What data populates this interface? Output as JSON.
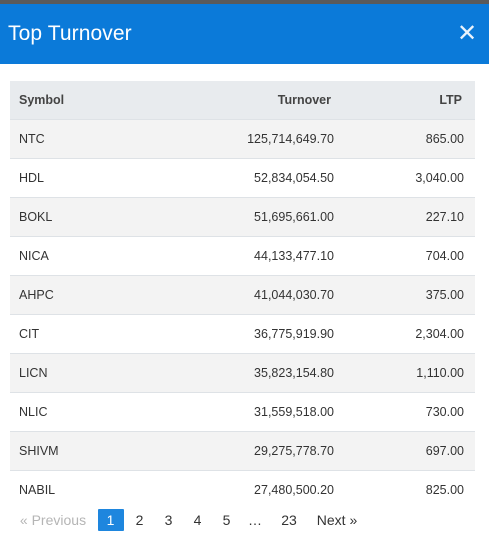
{
  "modal": {
    "title": "Top Turnover",
    "close_icon": "close-icon"
  },
  "table": {
    "headers": {
      "symbol": "Symbol",
      "turnover": "Turnover",
      "ltp": "LTP"
    },
    "rows": [
      {
        "symbol": "NTC",
        "turnover": "125,714,649.70",
        "ltp": "865.00"
      },
      {
        "symbol": "HDL",
        "turnover": "52,834,054.50",
        "ltp": "3,040.00"
      },
      {
        "symbol": "BOKL",
        "turnover": "51,695,661.00",
        "ltp": "227.10"
      },
      {
        "symbol": "NICA",
        "turnover": "44,133,477.10",
        "ltp": "704.00"
      },
      {
        "symbol": "AHPC",
        "turnover": "41,044,030.70",
        "ltp": "375.00"
      },
      {
        "symbol": "CIT",
        "turnover": "36,775,919.90",
        "ltp": "2,304.00"
      },
      {
        "symbol": "LICN",
        "turnover": "35,823,154.80",
        "ltp": "1,110.00"
      },
      {
        "symbol": "NLIC",
        "turnover": "31,559,518.00",
        "ltp": "730.00"
      },
      {
        "symbol": "SHIVM",
        "turnover": "29,275,778.70",
        "ltp": "697.00"
      },
      {
        "symbol": "NABIL",
        "turnover": "27,480,500.20",
        "ltp": "825.00"
      }
    ]
  },
  "pagination": {
    "previous": "« Previous",
    "pages": [
      "1",
      "2",
      "3",
      "4",
      "5"
    ],
    "active_page": "1",
    "ellipsis": "…",
    "last": "23",
    "next": "Next »"
  },
  "colors": {
    "header_bg": "#0b7ad9",
    "active_page_bg": "#1e86de"
  }
}
